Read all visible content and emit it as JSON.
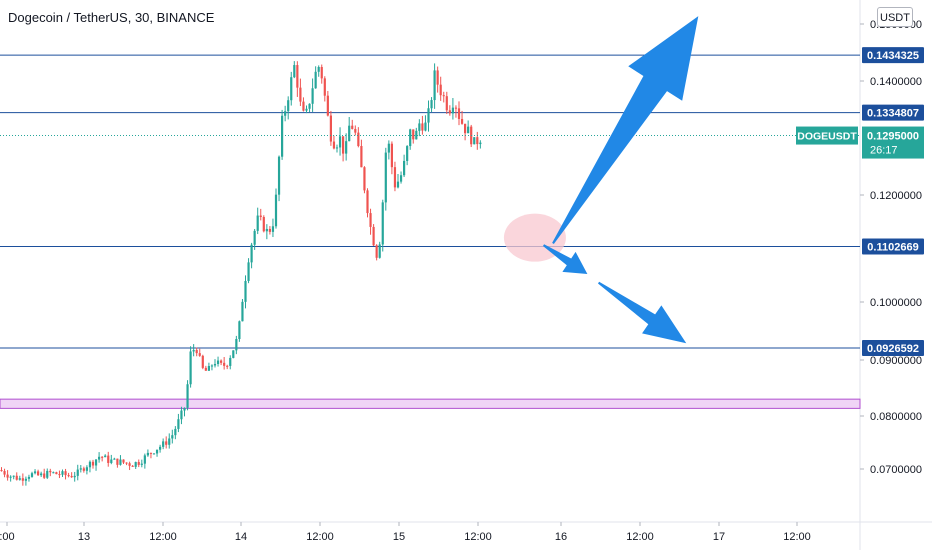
{
  "header": {
    "symbol_title": "Dogecoin / TetherUS, 30, BINANCE",
    "currency_button": "USDT"
  },
  "colors": {
    "up": "#26a69a",
    "down": "#ef5350",
    "hline": "#1c4f9c",
    "price_tag": "#26a69a",
    "arrow": "#2188e6",
    "zone_fill": "#f0d4f6",
    "zone_border": "#b04fcf",
    "circle": "#f8c8d0"
  },
  "chart_data": {
    "type": "candlestick",
    "x_ticks": [
      ":00",
      "13",
      "12:00",
      "14",
      "12:00",
      "15",
      "12:00",
      "16",
      "12:00",
      "17",
      "12:00"
    ],
    "y_ticks": [
      "0.1500000",
      "0.1400000",
      "0.1200000",
      "0.1000000",
      "0.0900000",
      "0.0800000",
      "0.0700000"
    ],
    "ylim": [
      0.0625,
      0.153
    ],
    "horizontal_levels": [
      {
        "price": 0.1434325,
        "label": "0.1434325"
      },
      {
        "price": 0.1334807,
        "label": "0.1334807"
      },
      {
        "price": 0.1102669,
        "label": "0.1102669"
      },
      {
        "price": 0.0926592,
        "label": "0.0926592"
      }
    ],
    "support_zone": [
      0.0822,
      0.0838
    ],
    "last_price": {
      "symbol": "DOGEUSDT",
      "value": "0.1295000",
      "countdown": "26:17",
      "price": 0.1295
    },
    "close_path": [
      [
        0,
        0.0715
      ],
      [
        10,
        0.0705
      ],
      [
        20,
        0.07
      ],
      [
        30,
        0.0708
      ],
      [
        40,
        0.0705
      ],
      [
        50,
        0.071
      ],
      [
        60,
        0.0708
      ],
      [
        70,
        0.0705
      ],
      [
        78,
        0.071
      ],
      [
        85,
        0.0722
      ],
      [
        92,
        0.0728
      ],
      [
        100,
        0.074
      ],
      [
        108,
        0.0732
      ],
      [
        116,
        0.073
      ],
      [
        124,
        0.0728
      ],
      [
        132,
        0.0725
      ],
      [
        140,
        0.073
      ],
      [
        148,
        0.0742
      ],
      [
        156,
        0.0752
      ],
      [
        164,
        0.076
      ],
      [
        172,
        0.0775
      ],
      [
        180,
        0.0805
      ],
      [
        186,
        0.083
      ],
      [
        190,
        0.0915
      ],
      [
        196,
        0.093
      ],
      [
        202,
        0.089
      ],
      [
        208,
        0.0885
      ],
      [
        214,
        0.0905
      ],
      [
        220,
        0.0895
      ],
      [
        226,
        0.0898
      ],
      [
        232,
        0.092
      ],
      [
        238,
        0.0945
      ],
      [
        243,
        0.102
      ],
      [
        248,
        0.108
      ],
      [
        253,
        0.112
      ],
      [
        258,
        0.115
      ],
      [
        263,
        0.114
      ],
      [
        268,
        0.1125
      ],
      [
        273,
        0.1145
      ],
      [
        277,
        0.12
      ],
      [
        281,
        0.131
      ],
      [
        285,
        0.134
      ],
      [
        290,
        0.138
      ],
      [
        295,
        0.142
      ],
      [
        300,
        0.135
      ],
      [
        305,
        0.132
      ],
      [
        310,
        0.136
      ],
      [
        315,
        0.14
      ],
      [
        320,
        0.142
      ],
      [
        325,
        0.136
      ],
      [
        330,
        0.13
      ],
      [
        335,
        0.128
      ],
      [
        340,
        0.129
      ],
      [
        345,
        0.126
      ],
      [
        350,
        0.132
      ],
      [
        355,
        0.13
      ],
      [
        360,
        0.125
      ],
      [
        365,
        0.12
      ],
      [
        370,
        0.114
      ],
      [
        374,
        0.111
      ],
      [
        378,
        0.108
      ],
      [
        382,
        0.116
      ],
      [
        387,
        0.13
      ],
      [
        391,
        0.125
      ],
      [
        395,
        0.121
      ],
      [
        400,
        0.122
      ],
      [
        405,
        0.125
      ],
      [
        410,
        0.13
      ],
      [
        415,
        0.129
      ],
      [
        420,
        0.132
      ],
      [
        425,
        0.131
      ],
      [
        430,
        0.134
      ],
      [
        434,
        0.14
      ],
      [
        439,
        0.138
      ],
      [
        444,
        0.136
      ],
      [
        449,
        0.134
      ],
      [
        454,
        0.136
      ],
      [
        459,
        0.133
      ],
      [
        464,
        0.131
      ],
      [
        469,
        0.13
      ],
      [
        474,
        0.128
      ],
      [
        479,
        0.129
      ],
      [
        483,
        0.1295
      ]
    ],
    "arrows": [
      {
        "from": [
          0.643,
          0.1108
        ],
        "to": [
          0.812,
          0.1502
        ],
        "label": ""
      },
      {
        "from": [
          0.632,
          0.1105
        ],
        "to": [
          0.683,
          0.1055
        ],
        "label": ""
      },
      {
        "from": [
          0.696,
          0.104
        ],
        "to": [
          0.798,
          0.0935
        ],
        "label": ""
      }
    ]
  }
}
